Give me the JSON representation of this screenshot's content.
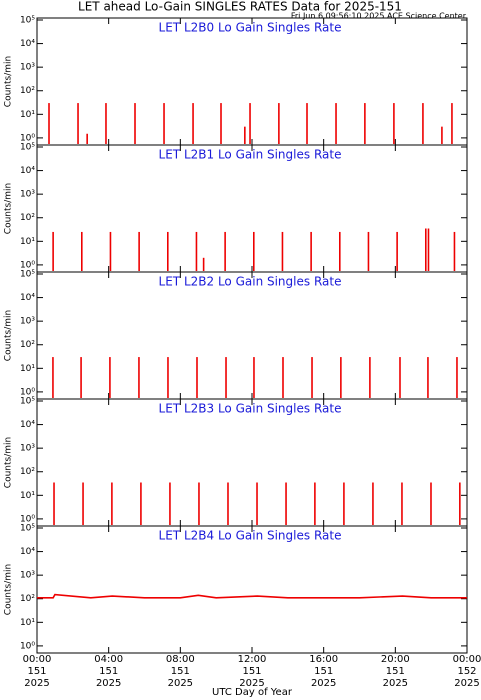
{
  "title": "LET ahead Lo-Gain SINGLES RATES Data for 2025-151",
  "subtitle": "Fri Jun  6 09:56:10 2025 ACE Science Center",
  "xlabel": "UTC Day of Year",
  "xlim": [
    0,
    24
  ],
  "xticks": [
    {
      "value": 0,
      "label": "00:00",
      "day": "151",
      "year": "2025"
    },
    {
      "value": 4,
      "label": "04:00",
      "day": "151",
      "year": "2025"
    },
    {
      "value": 8,
      "label": "08:00",
      "day": "151",
      "year": "2025"
    },
    {
      "value": 12,
      "label": "12:00",
      "day": "151",
      "year": "2025"
    },
    {
      "value": 16,
      "label": "16:00",
      "day": "151",
      "year": "2025"
    },
    {
      "value": 20,
      "label": "20:00",
      "day": "151",
      "year": "2025"
    },
    {
      "value": 24,
      "label": "00:00",
      "day": "152",
      "year": "2025"
    }
  ],
  "chart_data": [
    {
      "type": "spike",
      "title": "LET L2B0 Lo Gain Singles Rate",
      "ylabel": "Counts/min",
      "color": "#ee0000",
      "log_scale": true,
      "ylim": [
        0.5,
        100000
      ],
      "yticks": [
        {
          "value": 1,
          "label": "10⁰"
        },
        {
          "value": 10,
          "label": "10¹"
        },
        {
          "value": 100,
          "label": "10²"
        },
        {
          "value": 1000,
          "label": "10³"
        },
        {
          "value": 10000,
          "label": "10⁴"
        },
        {
          "value": 100000,
          "label": "10⁵"
        }
      ],
      "x": [
        0.67,
        2.29,
        2.8,
        3.85,
        5.47,
        7.09,
        8.71,
        10.27,
        11.6,
        11.89,
        13.5,
        15.07,
        16.69,
        18.3,
        19.92,
        21.54,
        22.6,
        23.16
      ],
      "values": [
        30,
        30,
        1.5,
        30,
        30,
        30,
        30,
        30,
        3,
        30,
        30,
        30,
        30,
        30,
        30,
        30,
        3,
        30
      ]
    },
    {
      "type": "spike",
      "title": "LET L2B1 Lo Gain Singles Rate",
      "ylabel": "Counts/min",
      "color": "#ee0000",
      "log_scale": true,
      "ylim": [
        0.5,
        100000
      ],
      "yticks": [
        {
          "value": 1,
          "label": "10⁰"
        },
        {
          "value": 10,
          "label": "10¹"
        },
        {
          "value": 100,
          "label": "10²"
        },
        {
          "value": 1000,
          "label": "10³"
        },
        {
          "value": 10000,
          "label": "10⁴"
        },
        {
          "value": 100000,
          "label": "10⁵"
        }
      ],
      "x": [
        0.9,
        2.5,
        4.1,
        5.7,
        7.3,
        8.9,
        9.3,
        10.5,
        12.1,
        13.7,
        15.3,
        16.9,
        18.5,
        20.1,
        21.7,
        21.85,
        23.3
      ],
      "values": [
        25,
        25,
        25,
        25,
        25,
        25,
        2,
        25,
        25,
        25,
        25,
        25,
        25,
        25,
        35,
        35,
        25
      ]
    },
    {
      "type": "spike",
      "title": "LET L2B2 Lo Gain Singles Rate",
      "ylabel": "Counts/min",
      "color": "#ee0000",
      "log_scale": true,
      "ylim": [
        0.5,
        100000
      ],
      "yticks": [
        {
          "value": 1,
          "label": "10⁰"
        },
        {
          "value": 10,
          "label": "10¹"
        },
        {
          "value": 100,
          "label": "10²"
        },
        {
          "value": 1000,
          "label": "10³"
        },
        {
          "value": 10000,
          "label": "10⁴"
        },
        {
          "value": 100000,
          "label": "10⁵"
        }
      ],
      "x": [
        0.89,
        2.46,
        4.07,
        5.69,
        7.31,
        8.93,
        10.55,
        12.11,
        13.73,
        15.35,
        16.96,
        18.58,
        20.26,
        21.82,
        23.44
      ],
      "values": [
        30,
        30,
        30,
        30,
        30,
        30,
        30,
        30,
        30,
        30,
        30,
        30,
        30,
        30,
        30
      ]
    },
    {
      "type": "spike",
      "title": "LET L2B3 Lo Gain Singles Rate",
      "ylabel": "Counts/min",
      "color": "#ee0000",
      "log_scale": true,
      "ylim": [
        0.5,
        100000
      ],
      "yticks": [
        {
          "value": 1,
          "label": "10⁰"
        },
        {
          "value": 10,
          "label": "10¹"
        },
        {
          "value": 100,
          "label": "10²"
        },
        {
          "value": 1000,
          "label": "10³"
        },
        {
          "value": 10000,
          "label": "10⁴"
        },
        {
          "value": 100000,
          "label": "10⁵"
        }
      ],
      "x": [
        0.95,
        2.57,
        4.18,
        5.8,
        7.42,
        9.04,
        10.66,
        12.28,
        13.9,
        15.51,
        17.13,
        18.75,
        20.37,
        21.99,
        23.6
      ],
      "values": [
        35,
        35,
        35,
        35,
        35,
        35,
        35,
        35,
        35,
        35,
        35,
        35,
        35,
        35,
        35
      ]
    },
    {
      "type": "line",
      "title": "LET L2B4 Lo Gain Singles Rate",
      "ylabel": "Counts/min",
      "color": "#ee0000",
      "log_scale": true,
      "ylim": [
        0.5,
        100000
      ],
      "yticks": [
        {
          "value": 1,
          "label": "10⁰"
        },
        {
          "value": 10,
          "label": "10¹"
        },
        {
          "value": 100,
          "label": "10²"
        },
        {
          "value": 1000,
          "label": "10³"
        },
        {
          "value": 10000,
          "label": "10⁴"
        },
        {
          "value": 100000,
          "label": "10⁵"
        }
      ],
      "x": [
        0,
        0.9,
        1.0,
        3,
        4.2,
        6,
        8,
        9.0,
        10,
        12.3,
        14,
        16,
        18,
        20.4,
        22,
        24
      ],
      "values": [
        110,
        110,
        150,
        110,
        130,
        110,
        110,
        140,
        110,
        130,
        110,
        110,
        110,
        130,
        110,
        110
      ]
    }
  ]
}
